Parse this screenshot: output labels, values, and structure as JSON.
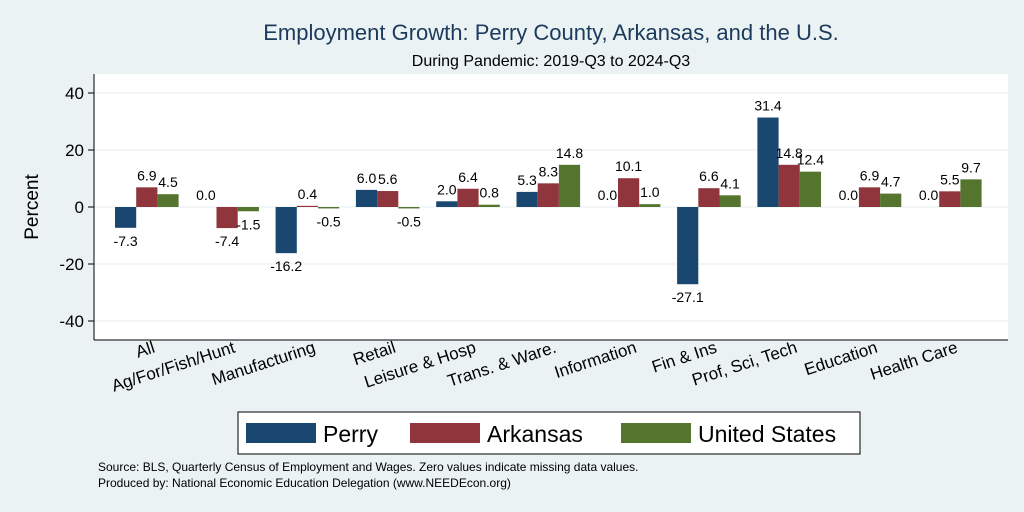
{
  "chart_data": {
    "type": "bar",
    "title": "Employment Growth: Perry County, Arkansas, and the U.S.",
    "subtitle": "During Pandemic: 2019-Q3 to 2024-Q3",
    "xlabel": "",
    "ylabel": "Percent",
    "ylim": [
      -45,
      45
    ],
    "yticks": [
      40,
      20,
      0,
      -20,
      -40
    ],
    "grid": true,
    "categories": [
      "All",
      "Ag/For/Fish/Hunt",
      "Manufacturing",
      "Retail",
      "Leisure & Hosp",
      "Trans. & Ware.",
      "Information",
      "Fin & Ins",
      "Prof, Sci, Tech",
      "Education",
      "Health Care"
    ],
    "series": [
      {
        "name": "Perry",
        "color": "#1a476f",
        "values": [
          -7.3,
          0.0,
          -16.2,
          6.0,
          2.0,
          5.3,
          0.0,
          -27.1,
          31.4,
          0.0,
          0.0
        ]
      },
      {
        "name": "Arkansas",
        "color": "#90353b",
        "values": [
          6.9,
          -7.4,
          0.4,
          5.6,
          6.4,
          8.3,
          10.1,
          6.6,
          14.8,
          6.9,
          5.5
        ]
      },
      {
        "name": "United States",
        "color": "#55752f",
        "values": [
          4.5,
          -1.5,
          -0.5,
          -0.5,
          0.8,
          14.8,
          1.0,
          4.1,
          12.4,
          4.7,
          9.7
        ]
      }
    ],
    "legend_position": "bottom"
  },
  "notes": {
    "source": "Source: BLS, Quarterly Census of Employment and Wages. Zero values indicate missing data values.",
    "produced": "Produced by: National Economic Education Delegation (www.NEEDEcon.org)"
  }
}
